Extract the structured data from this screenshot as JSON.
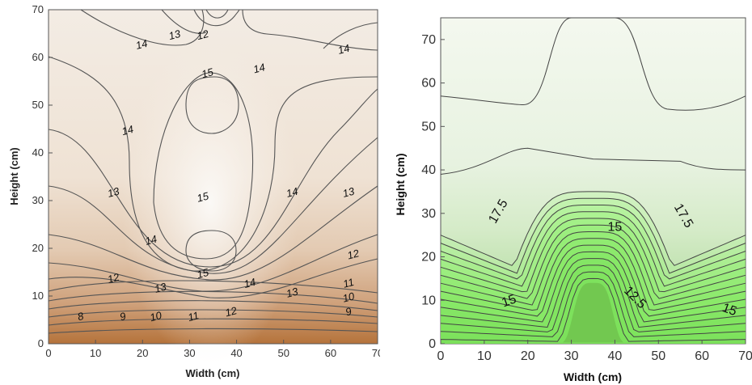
{
  "chart_data": [
    {
      "type": "contour",
      "xlabel": "Width (cm)",
      "ylabel": "Height (cm)",
      "xlim": [
        0,
        70
      ],
      "ylim": [
        0,
        70
      ],
      "xticks": [
        "0",
        "10",
        "20",
        "30",
        "40",
        "50",
        "60",
        "70"
      ],
      "yticks": [
        "0",
        "10",
        "20",
        "30",
        "40",
        "50",
        "60",
        "70"
      ],
      "colormap": [
        "#b5733b",
        "#f7f4ef"
      ],
      "contour_labels": [
        {
          "text": "8",
          "x": 7,
          "y": 5
        },
        {
          "text": "9",
          "x": 16,
          "y": 5
        },
        {
          "text": "10",
          "x": 23,
          "y": 5
        },
        {
          "text": "11",
          "x": 31,
          "y": 5
        },
        {
          "text": "12",
          "x": 39,
          "y": 6
        },
        {
          "text": "13",
          "x": 52,
          "y": 10
        },
        {
          "text": "14",
          "x": 43,
          "y": 12
        },
        {
          "text": "15",
          "x": 33,
          "y": 14
        },
        {
          "text": "13",
          "x": 24,
          "y": 11
        },
        {
          "text": "12",
          "x": 14,
          "y": 13
        },
        {
          "text": "14",
          "x": 22,
          "y": 21
        },
        {
          "text": "15",
          "x": 33,
          "y": 30
        },
        {
          "text": "13",
          "x": 14,
          "y": 31
        },
        {
          "text": "14",
          "x": 17,
          "y": 44
        },
        {
          "text": "15",
          "x": 34,
          "y": 56
        },
        {
          "text": "14",
          "x": 45,
          "y": 57
        },
        {
          "text": "14",
          "x": 20,
          "y": 62
        },
        {
          "text": "13",
          "x": 27,
          "y": 64
        },
        {
          "text": "12",
          "x": 33,
          "y": 64
        },
        {
          "text": "14",
          "x": 63,
          "y": 61
        },
        {
          "text": "14",
          "x": 52,
          "y": 31
        },
        {
          "text": "13",
          "x": 64,
          "y": 31
        },
        {
          "text": "12",
          "x": 65,
          "y": 18
        },
        {
          "text": "11",
          "x": 64,
          "y": 12
        },
        {
          "text": "10",
          "x": 64,
          "y": 9
        },
        {
          "text": "9",
          "x": 64,
          "y": 6
        }
      ]
    },
    {
      "type": "contour",
      "xlabel": "Width (cm)",
      "ylabel": "Height (cm)",
      "xlim": [
        0,
        70
      ],
      "ylim": [
        0,
        75
      ],
      "xticks": [
        "0",
        "10",
        "20",
        "30",
        "40",
        "50",
        "60",
        "70"
      ],
      "yticks": [
        "0",
        "10",
        "20",
        "30",
        "40",
        "50",
        "60",
        "70"
      ],
      "colormap": [
        "#6dbd4c",
        "#f6f8ef"
      ],
      "contour_labels": [
        {
          "text": "17.5",
          "x": 14,
          "y": 30
        },
        {
          "text": "17.5",
          "x": 55,
          "y": 29
        },
        {
          "text": "15",
          "x": 40,
          "y": 26
        },
        {
          "text": "12.5",
          "x": 44,
          "y": 10
        },
        {
          "text": "15",
          "x": 16,
          "y": 9
        },
        {
          "text": "15",
          "x": 66,
          "y": 7
        }
      ]
    }
  ]
}
